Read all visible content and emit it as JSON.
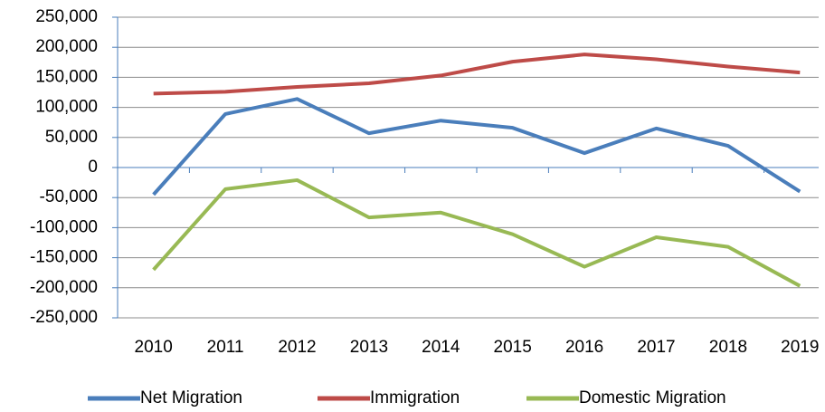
{
  "chart_data": {
    "type": "line",
    "categories": [
      "2010",
      "2011",
      "2012",
      "2013",
      "2014",
      "2015",
      "2016",
      "2017",
      "2018",
      "2019"
    ],
    "series": [
      {
        "name": "Net Migration",
        "color": "#4a7ebb",
        "values": [
          -45000,
          89000,
          114000,
          57000,
          78000,
          66000,
          24000,
          65000,
          36000,
          -40000
        ]
      },
      {
        "name": "Immigration",
        "color": "#be4b48",
        "values": [
          123000,
          126000,
          134000,
          140000,
          153000,
          176000,
          188000,
          180000,
          168000,
          158000
        ]
      },
      {
        "name": "Domestic Migration",
        "color": "#98b954",
        "values": [
          -170000,
          -36000,
          -21000,
          -83000,
          -75000,
          -111000,
          -165000,
          -116000,
          -132000,
          -197000
        ]
      }
    ],
    "ylim": [
      -250000,
      250000
    ],
    "yticks": [
      {
        "value": -250000,
        "label": "-250,000"
      },
      {
        "value": -200000,
        "label": "-200,000"
      },
      {
        "value": -150000,
        "label": "-150,000"
      },
      {
        "value": -100000,
        "label": "-100,000"
      },
      {
        "value": -50000,
        "label": "-50,000"
      },
      0,
      {
        "value": 50000,
        "label": "50,000"
      },
      {
        "value": 100000,
        "label": "100,000"
      },
      {
        "value": 150000,
        "label": "150,000"
      },
      {
        "value": 200000,
        "label": "200,000"
      },
      {
        "value": 250000,
        "label": "250,000"
      }
    ],
    "grid": true,
    "legend": "bottom"
  }
}
